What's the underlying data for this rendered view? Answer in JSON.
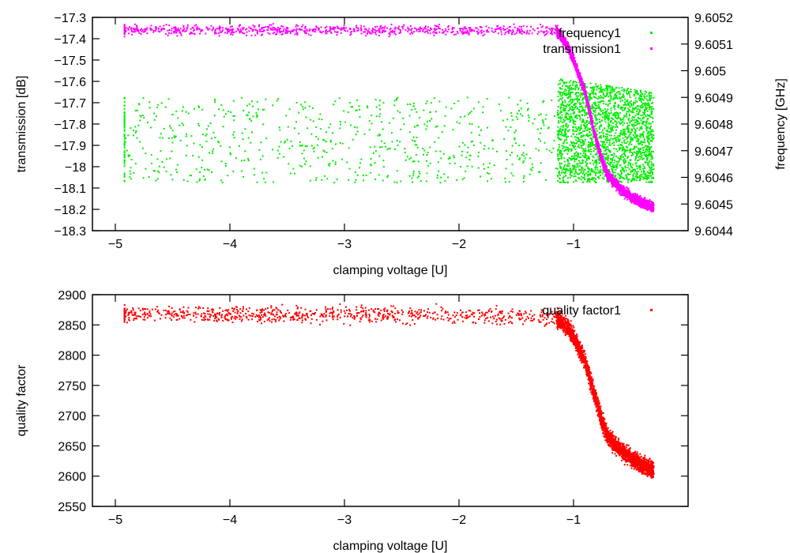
{
  "chart_data": [
    {
      "type": "scatter",
      "xlabel": "clamping voltage [U]",
      "ylabel": "transmission [dB]",
      "y2label": "frequency [GHz]",
      "xlim": [
        -5.2,
        0
      ],
      "ylim": [
        -18.3,
        -17.3
      ],
      "y2lim": [
        9.6044,
        9.6052
      ],
      "xticks": [
        "-5",
        "-4",
        "-3",
        "-2",
        "-1"
      ],
      "xtick_values": [
        -5,
        -4,
        -3,
        -2,
        -1
      ],
      "yticks": [
        "-17.3",
        "-17.4",
        "-17.5",
        "-17.6",
        "-17.7",
        "-17.8",
        "-17.9",
        "-18",
        "-18.1",
        "-18.2",
        "-18.3"
      ],
      "ytick_values": [
        -17.3,
        -17.4,
        -17.5,
        -17.6,
        -17.7,
        -17.8,
        -17.9,
        -18,
        -18.1,
        -18.2,
        -18.3
      ],
      "y2ticks": [
        "9.6052",
        "9.6051",
        "9.605",
        "9.6049",
        "9.6048",
        "9.6047",
        "9.6046",
        "9.6045",
        "9.6044"
      ],
      "y2tick_values": [
        9.6052,
        9.6051,
        9.605,
        9.6049,
        9.6048,
        9.6047,
        9.6046,
        9.6045,
        9.6044
      ],
      "legend_position": "top-right",
      "series": [
        {
          "name": "frequency1",
          "axis": "y2",
          "color": "#00ee00",
          "mode": "band",
          "x": [
            -4.92,
            -1.15,
            -1.14,
            -0.3
          ],
          "y_low": [
            9.60458,
            9.60458,
            9.60458,
            9.60458
          ],
          "y_high": [
            9.6049,
            9.6049,
            9.60497,
            9.60492
          ],
          "points": [
            700,
            2200
          ]
        },
        {
          "name": "transmission1",
          "axis": "y",
          "color": "#ff00ff",
          "mode": "trend",
          "x": [
            -4.92,
            -2.0,
            -1.15,
            -1.05,
            -1.0,
            -0.9,
            -0.8,
            -0.75,
            -0.7,
            -0.6,
            -0.5,
            -0.4,
            -0.3
          ],
          "y": [
            -17.36,
            -17.36,
            -17.36,
            -17.44,
            -17.5,
            -17.65,
            -17.88,
            -17.97,
            -18.04,
            -18.1,
            -18.14,
            -18.17,
            -18.19
          ],
          "noise": 0.02,
          "points": 3200
        }
      ]
    },
    {
      "type": "scatter",
      "xlabel": "clamping voltage [U]",
      "ylabel": "quality factor",
      "xlim": [
        -5.2,
        0
      ],
      "ylim": [
        2550,
        2900
      ],
      "xticks": [
        "-5",
        "-4",
        "-3",
        "-2",
        "-1"
      ],
      "xtick_values": [
        -5,
        -4,
        -3,
        -2,
        -1
      ],
      "yticks": [
        "2900",
        "2850",
        "2800",
        "2750",
        "2700",
        "2650",
        "2600",
        "2550"
      ],
      "ytick_values": [
        2900,
        2850,
        2800,
        2750,
        2700,
        2650,
        2600,
        2550
      ],
      "legend_position": "top-right",
      "series": [
        {
          "name": "quality factor1",
          "color": "#ff0000",
          "mode": "trend",
          "x": [
            -4.92,
            -2.0,
            -1.15,
            -1.05,
            -1.0,
            -0.9,
            -0.8,
            -0.75,
            -0.7,
            -0.6,
            -0.5,
            -0.4,
            -0.3
          ],
          "y": [
            2867,
            2867,
            2862,
            2845,
            2830,
            2790,
            2725,
            2690,
            2665,
            2645,
            2630,
            2618,
            2610
          ],
          "noise": 12,
          "points": 3200
        }
      ]
    }
  ]
}
